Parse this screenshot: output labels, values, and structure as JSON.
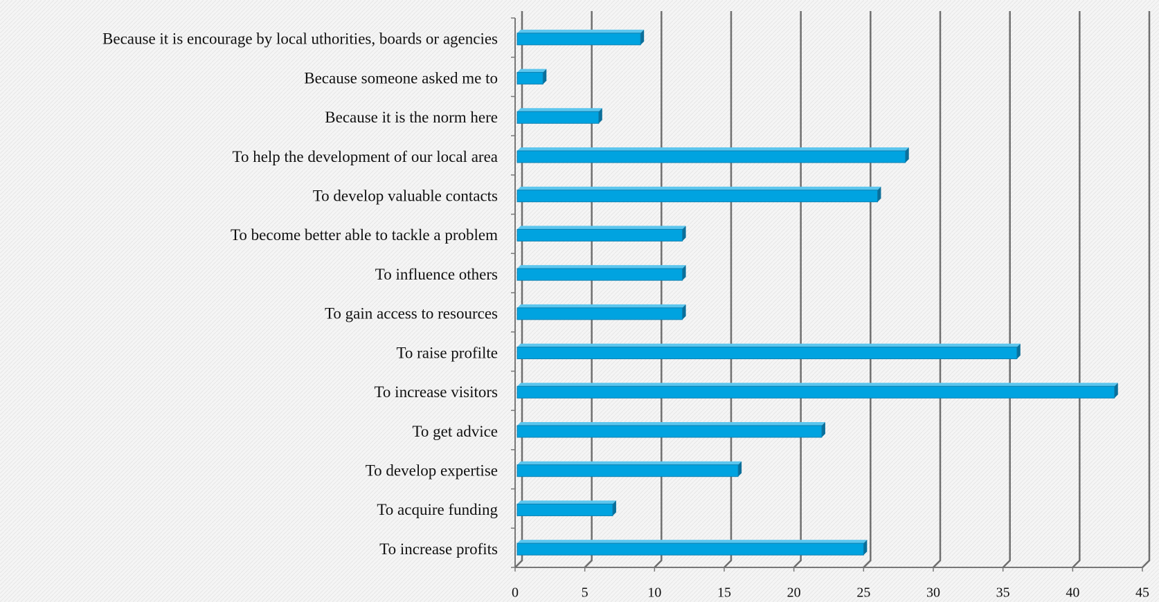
{
  "chart_data": {
    "type": "bar",
    "orientation": "horizontal",
    "categories": [
      "Because it is encourage by local uthorities, boards or agencies",
      "Because someone asked me to",
      "Because it is the norm here",
      "To help the development of our local area",
      "To develop valuable contacts",
      "To become better able to tackle a problem",
      "To influence others",
      "To gain access to resources",
      "To raise profilte",
      "To increase visitors",
      "To get advice",
      "To develop expertise",
      "To acquire funding",
      "To increase profits"
    ],
    "values": [
      9,
      2,
      6,
      28,
      26,
      12,
      12,
      12,
      36,
      43,
      22,
      16,
      7,
      25
    ],
    "color": "#00a3e0",
    "xlim": [
      0,
      45
    ],
    "xticks": [
      0,
      5,
      10,
      15,
      20,
      25,
      30,
      35,
      40,
      45
    ],
    "grid": true
  }
}
